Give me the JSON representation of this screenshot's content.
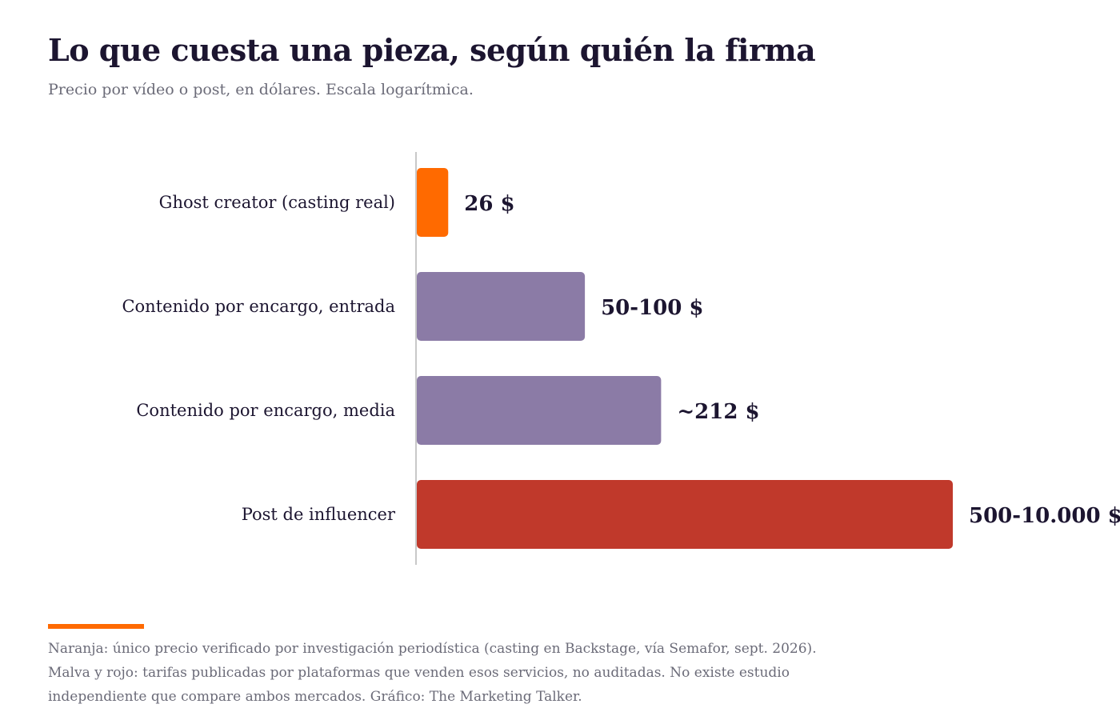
{
  "header": {
    "title": "Lo que cuesta una pieza, según quién la firma",
    "subtitle": "Precio por vídeo o post, en dólares. Escala logarítmica."
  },
  "chart_data": {
    "type": "bar",
    "orientation": "horizontal",
    "scale": "log",
    "title": "Lo que cuesta una pieza, según quién la firma",
    "subtitle": "Precio por vídeo o post, en dólares. Escala logarítmica.",
    "xlabel": "",
    "ylabel": "",
    "unit": "$",
    "xlim": [
      20,
      10000
    ],
    "grid": false,
    "legend": "none",
    "categories": [
      "Ghost creator (casting real)",
      "Contenido por encargo, entrada",
      "Contenido por encargo, media",
      "Post de influencer"
    ],
    "values": [
      26,
      100,
      212,
      5000
    ],
    "ranges": [
      [
        26,
        26
      ],
      [
        50,
        100
      ],
      [
        212,
        212
      ],
      [
        500,
        10000
      ]
    ],
    "value_labels": [
      "26 $",
      "50-100 $",
      "~212 $",
      "500-10.000 $"
    ],
    "colors": [
      "#ff6a00",
      "#8b7ba6",
      "#8b7ba6",
      "#c0392b"
    ]
  },
  "footer": {
    "accent_color": "#ff6a00",
    "note_line1": "Naranja: único precio verificado por investigación periodística (casting en Backstage, vía Semafor, sept. 2026).",
    "note_line2": "Malva y rojo: tarifas publicadas por plataformas que venden esos servicios, no auditadas. No existe estudio independiente que compare ambos mercados. Gráfico: The Marketing Talker."
  }
}
